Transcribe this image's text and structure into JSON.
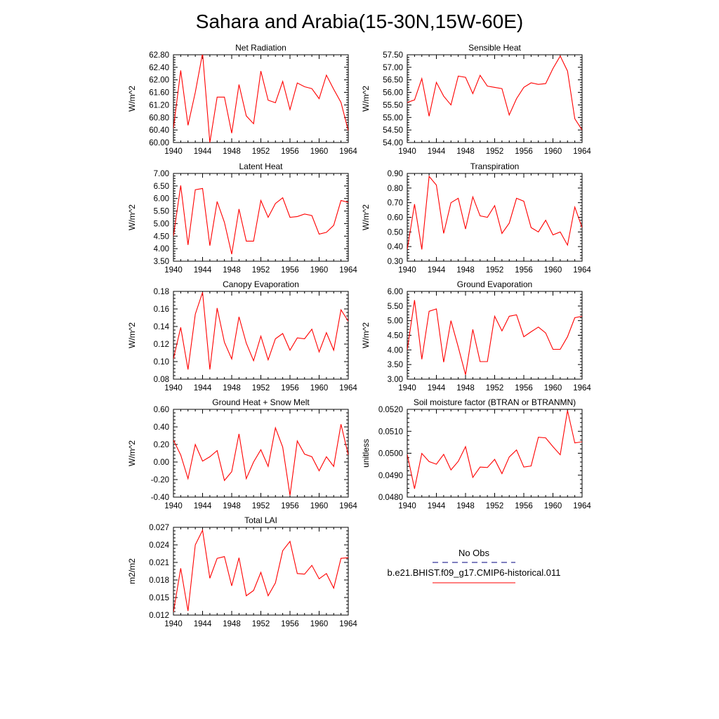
{
  "title": "Sahara and Arabia(15-30N,15W-60E)",
  "legend": {
    "entries": [
      {
        "label": "No Obs",
        "color": "#000080",
        "dash": true
      },
      {
        "label": "b.e21.BHIST.f09_g17.CMIP6-historical.011",
        "color": "#ff0000",
        "dash": false
      }
    ]
  },
  "chart_data": [
    {
      "type": "line",
      "title": "Net Radiation",
      "ylabel": "W/m^2",
      "xlim": [
        1940,
        1964
      ],
      "ylim": [
        60.0,
        62.8
      ],
      "xticks": [
        "1940",
        "1944",
        "1948",
        "1952",
        "1956",
        "1960",
        "1964"
      ],
      "yticks": [
        "60.00",
        "60.40",
        "60.80",
        "61.20",
        "61.60",
        "62.00",
        "62.40",
        "62.80"
      ],
      "x": [
        1940,
        1941,
        1942,
        1943,
        1944,
        1945,
        1946,
        1947,
        1948,
        1949,
        1950,
        1951,
        1952,
        1953,
        1954,
        1955,
        1956,
        1957,
        1958,
        1959,
        1960,
        1961,
        1962,
        1963,
        1964
      ],
      "series": [
        {
          "color": "#ff0000",
          "values": [
            60.45,
            62.3,
            60.55,
            61.6,
            62.85,
            60.0,
            61.45,
            61.45,
            60.3,
            61.85,
            60.85,
            60.6,
            62.28,
            61.35,
            61.27,
            61.95,
            61.05,
            61.9,
            61.78,
            61.72,
            61.4,
            62.15,
            61.7,
            61.28,
            60.38
          ]
        }
      ]
    },
    {
      "type": "line",
      "title": "Sensible Heat",
      "ylabel": "W/m^2",
      "xlim": [
        1940,
        1964
      ],
      "ylim": [
        54.0,
        57.5
      ],
      "xticks": [
        "1940",
        "1944",
        "1948",
        "1952",
        "1956",
        "1960",
        "1964"
      ],
      "yticks": [
        "54.00",
        "54.50",
        "55.00",
        "55.50",
        "56.00",
        "56.50",
        "57.00",
        "57.50"
      ],
      "x": [
        1940,
        1941,
        1942,
        1943,
        1944,
        1945,
        1946,
        1947,
        1948,
        1949,
        1950,
        1951,
        1952,
        1953,
        1954,
        1955,
        1956,
        1957,
        1958,
        1959,
        1960,
        1961,
        1962,
        1963,
        1964
      ],
      "series": [
        {
          "color": "#ff0000",
          "values": [
            55.6,
            55.7,
            56.55,
            55.05,
            56.4,
            55.85,
            55.5,
            56.65,
            56.6,
            55.95,
            56.68,
            56.25,
            56.2,
            56.15,
            55.1,
            55.75,
            56.2,
            56.38,
            56.32,
            56.35,
            56.95,
            57.45,
            56.85,
            54.95,
            54.5
          ]
        }
      ]
    },
    {
      "type": "line",
      "title": "Latent Heat",
      "ylabel": "W/m^2",
      "xlim": [
        1940,
        1964
      ],
      "ylim": [
        3.5,
        7.0
      ],
      "xticks": [
        "1940",
        "1944",
        "1948",
        "1952",
        "1956",
        "1960",
        "1964"
      ],
      "yticks": [
        "3.50",
        "4.00",
        "4.50",
        "5.00",
        "5.50",
        "6.00",
        "6.50",
        "7.00"
      ],
      "x": [
        1940,
        1941,
        1942,
        1943,
        1944,
        1945,
        1946,
        1947,
        1948,
        1949,
        1950,
        1951,
        1952,
        1953,
        1954,
        1955,
        1956,
        1957,
        1958,
        1959,
        1960,
        1961,
        1962,
        1963,
        1964
      ],
      "series": [
        {
          "color": "#ff0000",
          "values": [
            4.5,
            6.52,
            4.15,
            6.35,
            6.4,
            4.12,
            5.88,
            5.05,
            3.78,
            5.58,
            4.3,
            4.3,
            5.92,
            5.25,
            5.8,
            6.03,
            5.25,
            5.28,
            5.38,
            5.32,
            4.58,
            4.65,
            4.93,
            5.92,
            5.85
          ]
        }
      ]
    },
    {
      "type": "line",
      "title": "Transpiration",
      "ylabel": "W/m^2",
      "xlim": [
        1940,
        1964
      ],
      "ylim": [
        0.3,
        0.9
      ],
      "xticks": [
        "1940",
        "1944",
        "1948",
        "1952",
        "1956",
        "1960",
        "1964"
      ],
      "yticks": [
        "0.30",
        "0.40",
        "0.50",
        "0.60",
        "0.70",
        "0.80",
        "0.90"
      ],
      "x": [
        1940,
        1941,
        1942,
        1943,
        1944,
        1945,
        1946,
        1947,
        1948,
        1949,
        1950,
        1951,
        1952,
        1953,
        1954,
        1955,
        1956,
        1957,
        1958,
        1959,
        1960,
        1961,
        1962,
        1963,
        1964
      ],
      "series": [
        {
          "color": "#ff0000",
          "values": [
            0.38,
            0.69,
            0.38,
            0.88,
            0.82,
            0.49,
            0.7,
            0.73,
            0.52,
            0.74,
            0.61,
            0.6,
            0.68,
            0.49,
            0.56,
            0.73,
            0.71,
            0.53,
            0.5,
            0.58,
            0.48,
            0.5,
            0.41,
            0.67,
            0.53
          ]
        }
      ]
    },
    {
      "type": "line",
      "title": "Canopy Evaporation",
      "ylabel": "W/m^2",
      "xlim": [
        1940,
        1964
      ],
      "ylim": [
        0.08,
        0.18
      ],
      "xticks": [
        "1940",
        "1944",
        "1948",
        "1952",
        "1956",
        "1960",
        "1964"
      ],
      "yticks": [
        "0.08",
        "0.10",
        "0.12",
        "0.14",
        "0.16",
        "0.18"
      ],
      "x": [
        1940,
        1941,
        1942,
        1943,
        1944,
        1945,
        1946,
        1947,
        1948,
        1949,
        1950,
        1951,
        1952,
        1953,
        1954,
        1955,
        1956,
        1957,
        1958,
        1959,
        1960,
        1961,
        1962,
        1963,
        1964
      ],
      "series": [
        {
          "color": "#ff0000",
          "values": [
            0.103,
            0.139,
            0.091,
            0.154,
            0.179,
            0.091,
            0.161,
            0.122,
            0.103,
            0.151,
            0.121,
            0.101,
            0.129,
            0.102,
            0.126,
            0.132,
            0.113,
            0.127,
            0.126,
            0.137,
            0.111,
            0.133,
            0.113,
            0.159,
            0.146
          ]
        }
      ]
    },
    {
      "type": "line",
      "title": "Ground Evaporation",
      "ylabel": "W/m^2",
      "xlim": [
        1940,
        1964
      ],
      "ylim": [
        3.0,
        6.0
      ],
      "xticks": [
        "1940",
        "1944",
        "1948",
        "1952",
        "1956",
        "1960",
        "1964"
      ],
      "yticks": [
        "3.00",
        "3.50",
        "4.00",
        "4.50",
        "5.00",
        "5.50",
        "6.00"
      ],
      "x": [
        1940,
        1941,
        1942,
        1943,
        1944,
        1945,
        1946,
        1947,
        1948,
        1949,
        1950,
        1951,
        1952,
        1953,
        1954,
        1955,
        1956,
        1957,
        1958,
        1959,
        1960,
        1961,
        1962,
        1963,
        1964
      ],
      "series": [
        {
          "color": "#ff0000",
          "values": [
            4.0,
            5.7,
            3.68,
            5.32,
            5.4,
            3.58,
            5.0,
            4.1,
            3.15,
            4.7,
            3.6,
            3.6,
            5.15,
            4.65,
            5.15,
            5.2,
            4.45,
            4.62,
            4.78,
            4.58,
            4.02,
            4.02,
            4.45,
            5.1,
            5.15
          ]
        }
      ]
    },
    {
      "type": "line",
      "title": "Ground Heat + Snow Melt",
      "ylabel": "W/m^2",
      "xlim": [
        1940,
        1964
      ],
      "ylim": [
        -0.4,
        0.6
      ],
      "xticks": [
        "1940",
        "1944",
        "1948",
        "1952",
        "1956",
        "1960",
        "1964"
      ],
      "yticks": [
        "-0.40",
        "-0.20",
        "0.00",
        "0.20",
        "0.40",
        "0.60"
      ],
      "x": [
        1940,
        1941,
        1942,
        1943,
        1944,
        1945,
        1946,
        1947,
        1948,
        1949,
        1950,
        1951,
        1952,
        1953,
        1954,
        1955,
        1956,
        1957,
        1958,
        1959,
        1960,
        1961,
        1962,
        1963,
        1964
      ],
      "series": [
        {
          "color": "#ff0000",
          "values": [
            0.25,
            0.08,
            -0.19,
            0.2,
            0.01,
            0.06,
            0.13,
            -0.21,
            -0.11,
            0.32,
            -0.19,
            0.0,
            0.14,
            -0.05,
            0.39,
            0.17,
            -0.38,
            0.24,
            0.09,
            0.06,
            -0.1,
            0.06,
            -0.05,
            0.43,
            0.08
          ]
        }
      ]
    },
    {
      "type": "line",
      "title": "Soil moisture factor (BTRAN or BTRANMN)",
      "ylabel": "unitless",
      "xlim": [
        1940,
        1964
      ],
      "ylim": [
        0.048,
        0.052
      ],
      "xticks": [
        "1940",
        "1944",
        "1948",
        "1952",
        "1956",
        "1960",
        "1964"
      ],
      "yticks": [
        "0.0480",
        "0.0490",
        "0.0500",
        "0.0510",
        "0.0520"
      ],
      "x": [
        1940,
        1941,
        1942,
        1943,
        1944,
        1945,
        1946,
        1947,
        1948,
        1949,
        1950,
        1951,
        1952,
        1953,
        1954,
        1955,
        1956,
        1957,
        1958,
        1959,
        1960,
        1961,
        1962,
        1963,
        1964
      ],
      "series": [
        {
          "color": "#ff0000",
          "values": [
            0.04995,
            0.04838,
            0.04999,
            0.04962,
            0.0495,
            0.04995,
            0.04924,
            0.04963,
            0.0503,
            0.0489,
            0.04937,
            0.04935,
            0.04972,
            0.04907,
            0.04983,
            0.05015,
            0.04937,
            0.04942,
            0.05073,
            0.0507,
            0.0503,
            0.04993,
            0.05195,
            0.05047,
            0.05052
          ]
        }
      ]
    },
    {
      "type": "line",
      "title": "Total LAI",
      "ylabel": "m2/m2",
      "xlim": [
        1940,
        1964
      ],
      "ylim": [
        0.012,
        0.027
      ],
      "xticks": [
        "1940",
        "1944",
        "1948",
        "1952",
        "1956",
        "1960",
        "1964"
      ],
      "yticks": [
        "0.012",
        "0.015",
        "0.018",
        "0.021",
        "0.024",
        "0.027"
      ],
      "x": [
        1940,
        1941,
        1942,
        1943,
        1944,
        1945,
        1946,
        1947,
        1948,
        1949,
        1950,
        1951,
        1952,
        1953,
        1954,
        1955,
        1956,
        1957,
        1958,
        1959,
        1960,
        1961,
        1962,
        1963,
        1964
      ],
      "series": [
        {
          "color": "#ff0000",
          "values": [
            0.0125,
            0.02,
            0.0127,
            0.024,
            0.0265,
            0.0183,
            0.0217,
            0.022,
            0.017,
            0.0218,
            0.0153,
            0.0162,
            0.0193,
            0.0153,
            0.0175,
            0.023,
            0.0246,
            0.0191,
            0.019,
            0.0205,
            0.0182,
            0.0191,
            0.0166,
            0.0217,
            0.0218
          ]
        }
      ]
    }
  ]
}
